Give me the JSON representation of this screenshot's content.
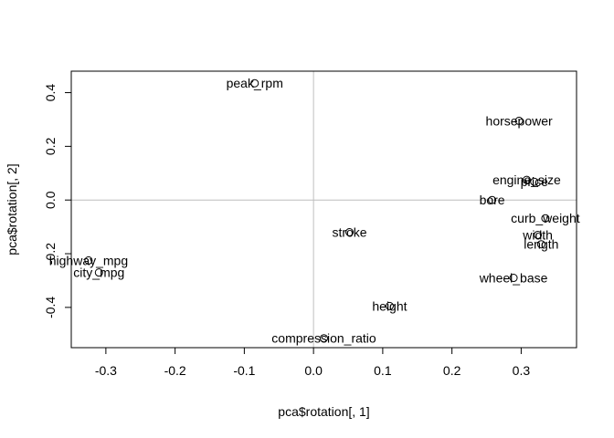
{
  "chart_data": {
    "type": "scatter",
    "xlabel": "pca$rotation[, 1]",
    "ylabel": "pca$rotation[, 2]",
    "xlim": [
      -0.35,
      0.38
    ],
    "ylim": [
      -0.55,
      0.48
    ],
    "x_ticks": [
      -0.3,
      -0.2,
      -0.1,
      0.0,
      0.1,
      0.2,
      0.3
    ],
    "y_ticks": [
      -0.4,
      -0.2,
      0.0,
      0.2,
      0.4
    ],
    "x_tick_labels": [
      "-0.3",
      "-0.2",
      "-0.1",
      "0.0",
      "0.1",
      "0.2",
      "0.3"
    ],
    "y_tick_labels": [
      "-0.4",
      "-0.2",
      "0.0",
      "0.2",
      "0.4"
    ],
    "reference_lines": {
      "x": 0,
      "y": 0,
      "color": "#bebebe"
    },
    "points": [
      {
        "label": "peak_rpm",
        "x": -0.085,
        "y": 0.435
      },
      {
        "label": "horsepower",
        "x": 0.297,
        "y": 0.295
      },
      {
        "label": "engine_size",
        "x": 0.308,
        "y": 0.075
      },
      {
        "label": "price",
        "x": 0.319,
        "y": 0.068
      },
      {
        "label": "bore",
        "x": 0.258,
        "y": 0.0
      },
      {
        "label": "curb_weight",
        "x": 0.335,
        "y": -0.068
      },
      {
        "label": "width",
        "x": 0.324,
        "y": -0.13
      },
      {
        "label": "length",
        "x": 0.329,
        "y": -0.165
      },
      {
        "label": "stroke",
        "x": 0.052,
        "y": -0.12
      },
      {
        "label": "highway_mpg",
        "x": -0.325,
        "y": -0.225
      },
      {
        "label": "city_mpg",
        "x": -0.31,
        "y": -0.27
      },
      {
        "label": "wheel_base",
        "x": 0.289,
        "y": -0.29
      },
      {
        "label": "height",
        "x": 0.11,
        "y": -0.395
      },
      {
        "label": "compression_ratio",
        "x": 0.015,
        "y": -0.515
      }
    ]
  }
}
